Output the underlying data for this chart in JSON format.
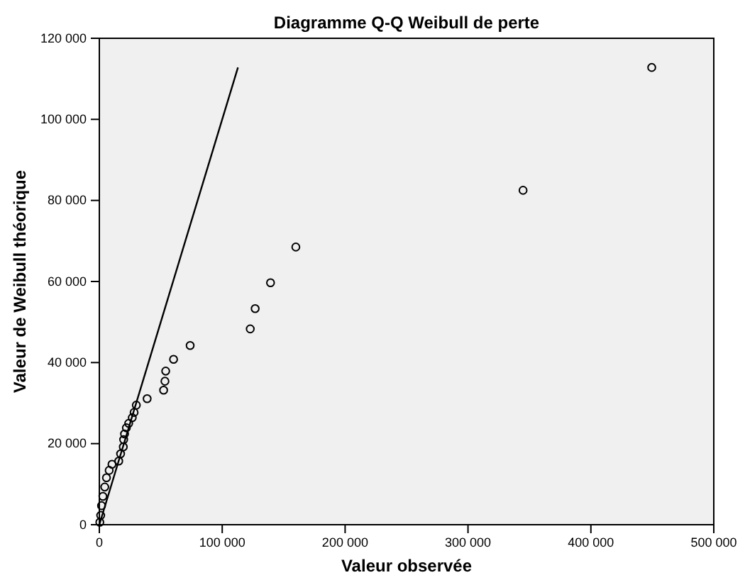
{
  "chart_data": {
    "type": "scatter",
    "title": "Diagramme Q-Q Weibull de perte",
    "xlabel": "Valeur observée",
    "ylabel": "Valeur de Weibull théorique",
    "xlim": [
      0,
      500000
    ],
    "ylim": [
      0,
      120000
    ],
    "xticks": [
      {
        "value": 0,
        "label": "0"
      },
      {
        "value": 100000,
        "label": "100 000"
      },
      {
        "value": 200000,
        "label": "200 000"
      },
      {
        "value": 300000,
        "label": "300 000"
      },
      {
        "value": 400000,
        "label": "400 000"
      },
      {
        "value": 500000,
        "label": "500 000"
      }
    ],
    "yticks": [
      {
        "value": 0,
        "label": "0"
      },
      {
        "value": 20000,
        "label": "20 000"
      },
      {
        "value": 40000,
        "label": "40 000"
      },
      {
        "value": 60000,
        "label": "60 000"
      },
      {
        "value": 80000,
        "label": "80 000"
      },
      {
        "value": 100000,
        "label": "100 000"
      },
      {
        "value": 120000,
        "label": "120 000"
      }
    ],
    "grid": false,
    "series": [
      {
        "marker": "circle",
        "color": "#000000",
        "x": [
          400,
          1100,
          1800,
          2900,
          4400,
          5800,
          8000,
          10300,
          15800,
          17300,
          19500,
          19800,
          20500,
          22000,
          23900,
          26800,
          28300,
          30100,
          38900,
          52300,
          53400,
          54000,
          60400,
          73900,
          122800,
          126800,
          139300,
          159900,
          344800,
          449500
        ],
        "values": [
          600,
          2300,
          4700,
          7000,
          9300,
          11600,
          13400,
          14900,
          15700,
          17500,
          19200,
          21000,
          22400,
          23900,
          25000,
          26400,
          27700,
          29500,
          31100,
          33200,
          35400,
          37900,
          40800,
          44200,
          48300,
          53300,
          59700,
          68500,
          82500,
          112800
        ]
      },
      {
        "type": "line",
        "color": "#000000",
        "line_style": "solid",
        "marker": "none",
        "x": [
          0,
          112800
        ],
        "values": [
          0,
          112800
        ]
      }
    ]
  }
}
